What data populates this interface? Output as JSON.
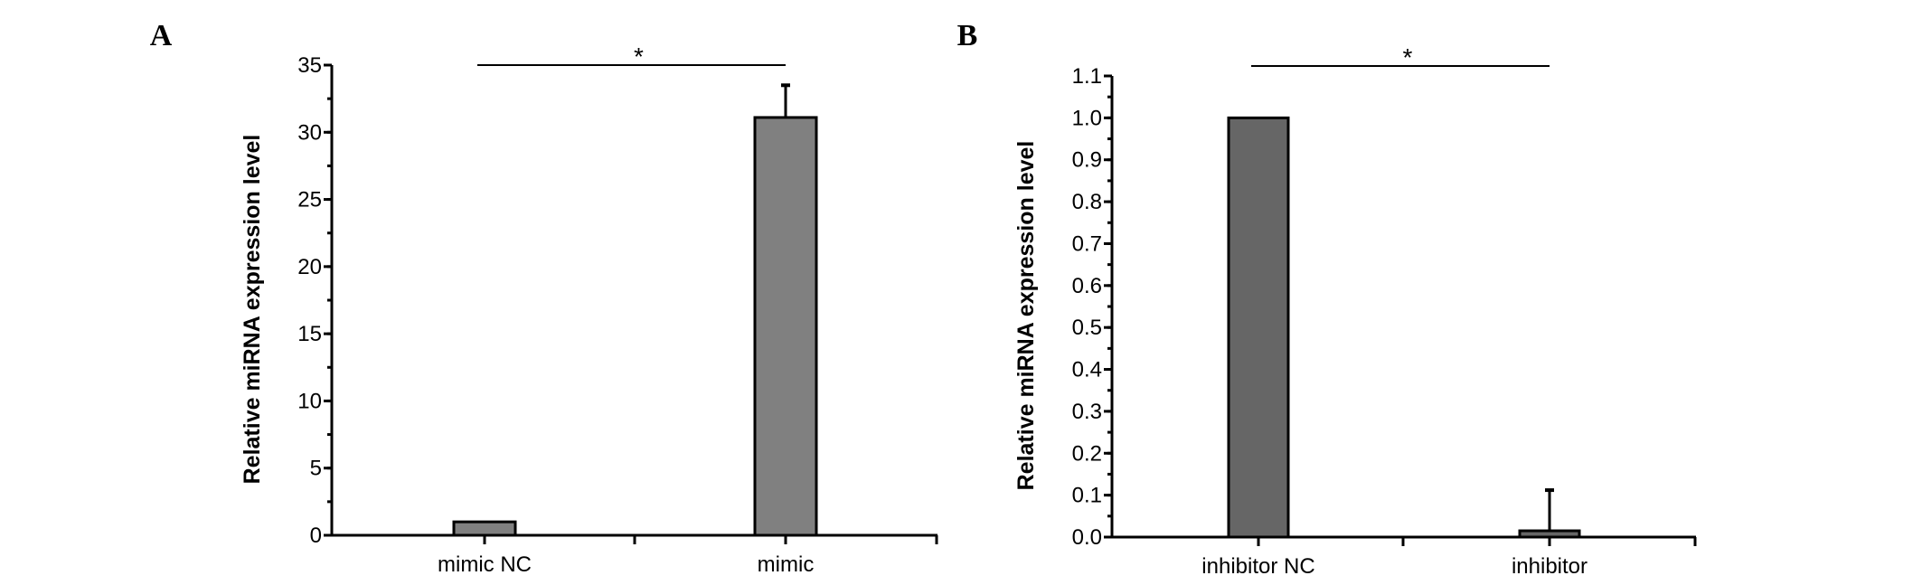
{
  "chart_data": [
    {
      "panel_label": "A",
      "type": "bar",
      "categories": [
        "mimic NC",
        "mimic"
      ],
      "values": [
        1.0,
        31.1
      ],
      "error_upper": [
        null,
        33.5
      ],
      "ylabel": "Relative miRNA expression level",
      "xlabel": "",
      "ylim": [
        0,
        35
      ],
      "yticks": [
        "0",
        "5",
        "10",
        "15",
        "20",
        "25",
        "30",
        "35"
      ],
      "ytick_values": [
        0,
        5,
        10,
        15,
        20,
        25,
        30,
        35
      ],
      "minor_tick_step": 2.5,
      "grid": false,
      "bar_color": "#808080",
      "significance": {
        "from": "mimic NC",
        "to": "mimic",
        "label": "*"
      }
    },
    {
      "panel_label": "B",
      "type": "bar",
      "categories": [
        "inhibitor NC",
        "inhibitor"
      ],
      "values": [
        1.0,
        0.015
      ],
      "error_upper": [
        null,
        0.112
      ],
      "ylabel": "Relative miRNA expression level",
      "xlabel": "",
      "ylim": [
        0,
        1.1
      ],
      "yticks": [
        "0.0",
        "0.1",
        "0.2",
        "0.3",
        "0.4",
        "0.5",
        "0.6",
        "0.7",
        "0.8",
        "0.9",
        "1.0",
        "1.1"
      ],
      "ytick_values": [
        0,
        0.1,
        0.2,
        0.3,
        0.4,
        0.5,
        0.6,
        0.7,
        0.8,
        0.9,
        1.0,
        1.1
      ],
      "minor_tick_step": 0.05,
      "grid": false,
      "bar_color": "#666666",
      "significance": {
        "from": "inhibitor NC",
        "to": "inhibitor",
        "label": "*"
      }
    }
  ]
}
